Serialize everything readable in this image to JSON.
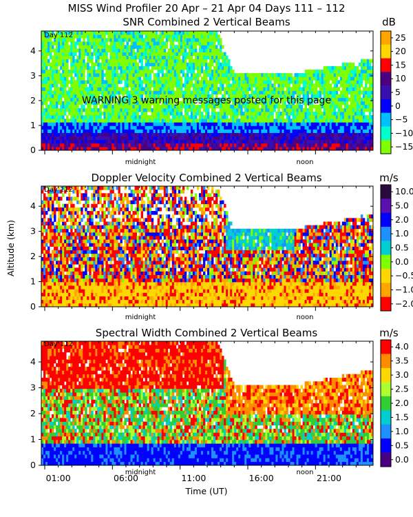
{
  "page": {
    "main_title": "MISS Wind Profiler  20 Apr – 21 Apr 04 Days 111 – 112",
    "warning": "WARNING  3 warning messages posted for this page",
    "y_axis_label": "Altitude (km)",
    "x_axis_label": "Time (UT)",
    "day_label": "Day 112",
    "midnight_label": "midnight",
    "noon_label": "noon",
    "x_tick_labels": [
      "01:00",
      "06:00",
      "11:00",
      "16:00",
      "21:00"
    ]
  },
  "chart_data": [
    {
      "type": "heatmap",
      "title": "SNR Combined 2 Vertical Beams",
      "unit": "dB",
      "ylabel": "Altitude (km)",
      "ylim": [
        0,
        4.8
      ],
      "y_ticks": [
        "0",
        "1",
        "2",
        "3",
        "4"
      ],
      "colorbar": {
        "labels": [
          "25",
          "20",
          "15",
          "10",
          "5",
          "0",
          "−5",
          "−10",
          "−15"
        ],
        "colors": [
          "#FFA500",
          "#FFD700",
          "#FF0000",
          "#4B0082",
          "#3A0FB0",
          "#0000FF",
          "#00BFFF",
          "#00FFCC",
          "#7FFF00"
        ]
      }
    },
    {
      "type": "heatmap",
      "title": "Doppler Velocity Combined 2 Vertical Beams",
      "unit": "m/s",
      "ylabel": "Altitude (km)",
      "ylim": [
        0,
        4.8
      ],
      "y_ticks": [
        "0",
        "1",
        "2",
        "3",
        "4"
      ],
      "colorbar": {
        "labels": [
          "10.0",
          "5.0",
          "2.0",
          "1.0",
          "0.5",
          "0.0",
          "−0.5",
          "−1.0",
          "−2.0"
        ],
        "colors": [
          "#2B0A3D",
          "#5A0FB0",
          "#0000FF",
          "#1E90FF",
          "#00CED1",
          "#7FFF00",
          "#FFD700",
          "#FFA500",
          "#FF0000"
        ]
      }
    },
    {
      "type": "heatmap",
      "title": "Spectral Width Combined 2 Vertical Beams",
      "unit": "m/s",
      "ylabel": "Altitude (km)",
      "ylim": [
        0,
        4.8
      ],
      "y_ticks": [
        "0",
        "1",
        "2",
        "3",
        "4"
      ],
      "colorbar": {
        "labels": [
          "4.0",
          "3.5",
          "3.0",
          "2.5",
          "2.0",
          "1.5",
          "1.0",
          "0.5",
          "0.0"
        ],
        "colors": [
          "#FF0000",
          "#FF8C00",
          "#FFD700",
          "#ADFF2F",
          "#32CD32",
          "#00CED1",
          "#1E90FF",
          "#0000FF",
          "#4B0082"
        ]
      }
    }
  ]
}
